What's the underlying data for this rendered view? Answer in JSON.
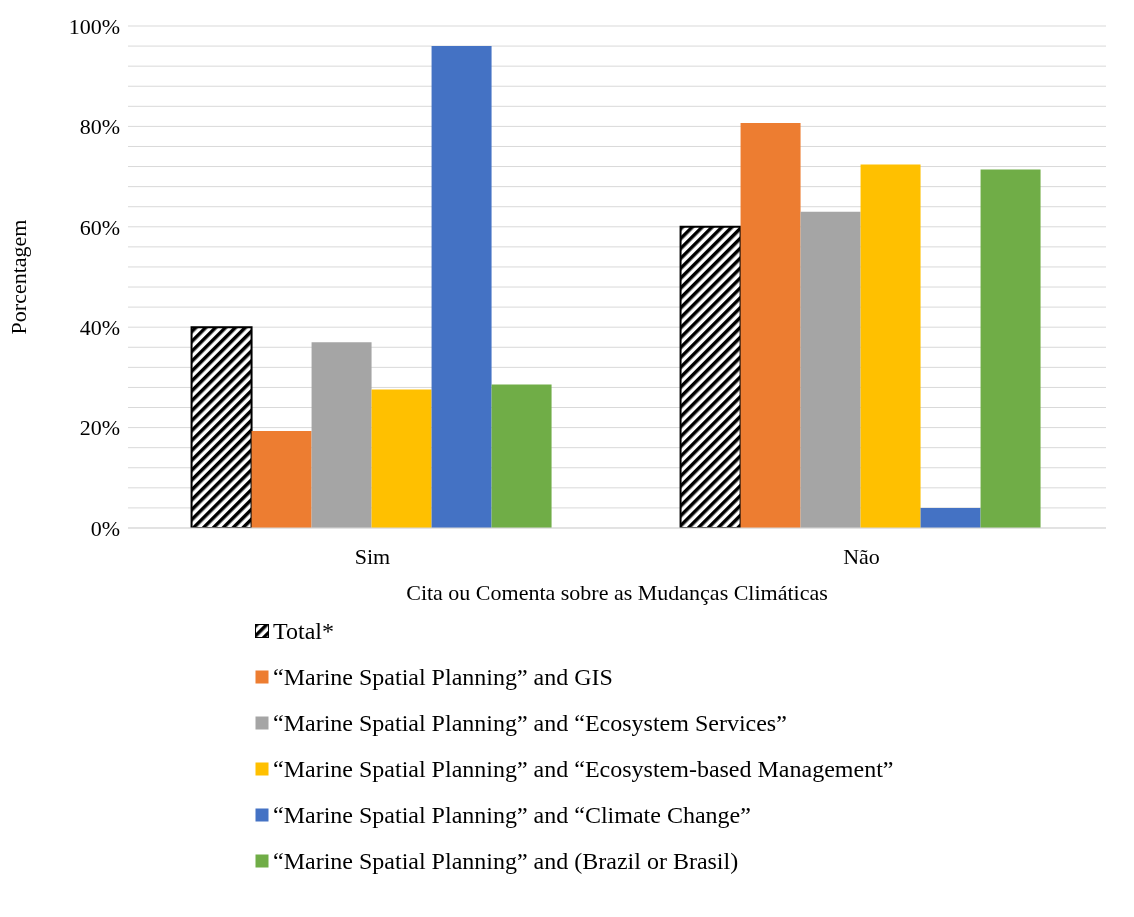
{
  "chart_data": {
    "type": "bar",
    "xlabel": "Cita ou Comenta sobre as Mudanças Climáticas",
    "ylabel": "Porcentagem",
    "categories": [
      "Sim",
      "Não"
    ],
    "series": [
      {
        "name": "Total*",
        "color": "#000000",
        "values": [
          40,
          60
        ]
      },
      {
        "name": "“Marine Spatial Planning” and GIS",
        "color": "#ed7d31",
        "values": [
          19.3,
          80.7
        ]
      },
      {
        "name": "“Marine Spatial Planning” and “Ecosystem Services”",
        "color": "#a5a5a5",
        "values": [
          37,
          63
        ]
      },
      {
        "name": "“Marine Spatial Planning” and “Ecosystem-based Management”",
        "color": "#ffc000",
        "values": [
          27.6,
          72.4
        ]
      },
      {
        "name": "“Marine Spatial Planning” and “Climate Change”",
        "color": "#4472c4",
        "values": [
          96,
          4
        ]
      },
      {
        "name": "“Marine Spatial Planning” and (Brazil or Brasil)",
        "color": "#70ad47",
        "values": [
          28.6,
          71.4
        ]
      }
    ],
    "ylim": [
      0,
      100
    ],
    "yticks": [
      {
        "value": 0,
        "label": "0%"
      },
      {
        "value": 4,
        "label": null
      },
      {
        "value": 8,
        "label": null
      },
      {
        "value": 12,
        "label": null
      },
      {
        "value": 16,
        "label": null
      },
      {
        "value": 20,
        "label": "20%"
      },
      {
        "value": 24,
        "label": null
      },
      {
        "value": 28,
        "label": null
      },
      {
        "value": 32,
        "label": null
      },
      {
        "value": 36,
        "label": null
      },
      {
        "value": 40,
        "label": "40%"
      },
      {
        "value": 44,
        "label": null
      },
      {
        "value": 48,
        "label": null
      },
      {
        "value": 52,
        "label": null
      },
      {
        "value": 56,
        "label": null
      },
      {
        "value": 60,
        "label": "60%"
      },
      {
        "value": 64,
        "label": null
      },
      {
        "value": 68,
        "label": null
      },
      {
        "value": 72,
        "label": null
      },
      {
        "value": 76,
        "label": null
      },
      {
        "value": 80,
        "label": "80%"
      },
      {
        "value": 84,
        "label": null
      },
      {
        "value": 88,
        "label": null
      },
      {
        "value": 92,
        "label": null
      },
      {
        "value": 96,
        "label": null
      },
      {
        "value": 100,
        "label": "100%"
      }
    ],
    "grid": "y",
    "legend": "bottom"
  }
}
